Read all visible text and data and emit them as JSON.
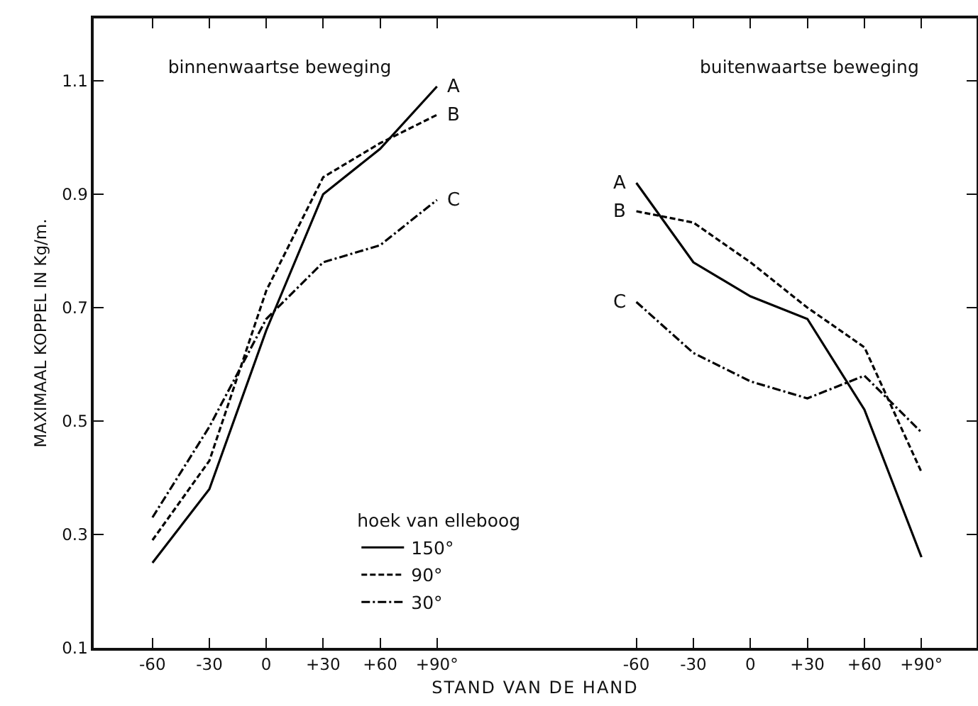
{
  "chart_data": [
    {
      "type": "line",
      "title": "binnenwaartse beweging",
      "ylabel": "MAXIMAAL KOPPEL IN Kg/m.",
      "xlabel": "STAND VAN DE HAND",
      "legend_title": "hoek van elleboog",
      "legend": "bottom right",
      "x": [
        -60,
        -30,
        0,
        30,
        60,
        90
      ],
      "xlim": [
        -91,
        142.5
      ],
      "xticks": [
        {
          "value": -60,
          "label": "-60"
        },
        {
          "value": -30,
          "label": "-30"
        },
        0,
        {
          "value": 30,
          "label": "+30"
        },
        {
          "value": 60,
          "label": "+60"
        },
        {
          "value": 90,
          "label": "+90°"
        }
      ],
      "ylim": [
        0.1,
        1.21
      ],
      "yticks": [
        0.1,
        0.3,
        0.5,
        0.7,
        0.9,
        1.1
      ],
      "grid": false,
      "marker": "none",
      "series": [
        {
          "name": "150°",
          "color": "#000000",
          "line_style": "solid",
          "values": [
            0.25,
            0.38,
            0.66,
            0.9,
            0.98,
            1.09
          ]
        },
        {
          "name": "90°",
          "color": "#000000",
          "line_style": "dashed",
          "values": [
            0.29,
            0.43,
            0.73,
            0.93,
            0.99,
            1.04
          ]
        },
        {
          "name": "30°",
          "color": "#000000",
          "line_style": "dashdot",
          "values": [
            0.33,
            0.49,
            0.68,
            0.78,
            0.81,
            0.89
          ]
        }
      ],
      "annotations": [
        "A",
        "B",
        "C"
      ]
    },
    {
      "type": "line",
      "title": "buitenwaartse beweging",
      "tick_labels": "x",
      "marker": "none",
      "grid": false,
      "x": [
        -60,
        -30,
        0,
        30,
        60,
        90
      ],
      "xlim": [
        -112.5,
        119
      ],
      "xticks": [
        {
          "value": -60,
          "label": "-60"
        },
        {
          "value": -30,
          "label": "-30"
        },
        0,
        {
          "value": 30,
          "label": "+30"
        },
        {
          "value": 60,
          "label": "+60"
        },
        {
          "value": 90,
          "label": "+90°"
        }
      ],
      "ylim": [
        0.1,
        1.21
      ],
      "yticks": [
        0.1,
        0.3,
        0.5,
        0.7,
        0.9,
        1.1
      ],
      "series": [
        {
          "color": "#000000",
          "line_style": "solid",
          "values": [
            0.92,
            0.78,
            0.72,
            0.68,
            0.52,
            0.26
          ]
        },
        {
          "color": "#000000",
          "line_style": "dashed",
          "values": [
            0.87,
            0.85,
            0.78,
            0.7,
            0.63,
            0.41
          ]
        },
        {
          "color": "#000000",
          "line_style": "dashdot",
          "values": [
            0.71,
            0.62,
            0.57,
            0.54,
            0.58,
            0.48
          ]
        }
      ],
      "annotations": [
        "A",
        "B",
        "C"
      ]
    }
  ]
}
